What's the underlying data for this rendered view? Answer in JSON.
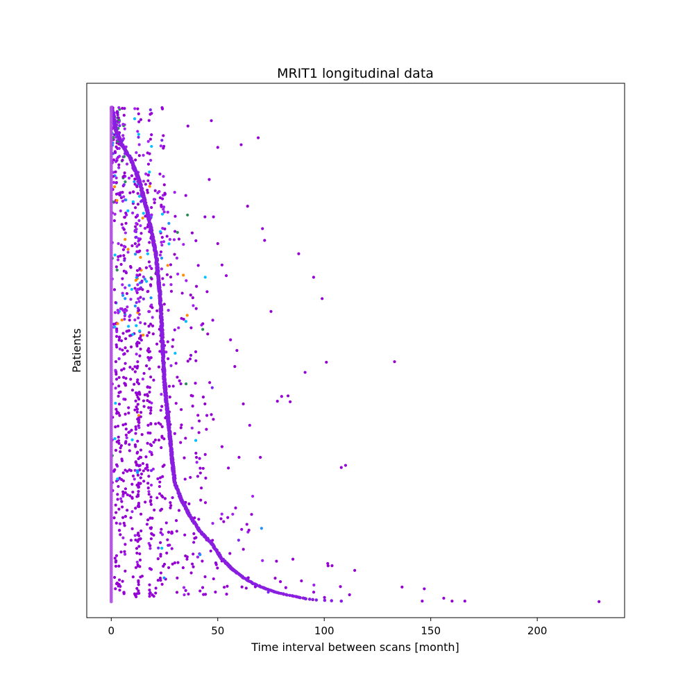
{
  "chart_data": {
    "type": "scatter",
    "title": "MRIT1 longitudinal data",
    "xlabel": "Time interval between scans [month]",
    "ylabel": "Patients",
    "xlim": [
      -11.5,
      241
    ],
    "ylim": [
      0,
      1
    ],
    "xticks": [
      0,
      50,
      100,
      150,
      200
    ],
    "yticks": [],
    "grid": false,
    "legend": false,
    "colors": {
      "baseline": "#b050e0",
      "curve": "#8a1ee0",
      "points": [
        "#9400d3",
        "#7a28f0",
        "#a020f0",
        "#1e90ff",
        "#00bfff",
        "#2e8b57",
        "#ff8c00"
      ]
    },
    "series": [
      {
        "role": "baseline",
        "x": [
          0
        ],
        "y_range": [
          0.03,
          0.955
        ]
      },
      {
        "role": "curve",
        "x": [
          0,
          1,
          2,
          3,
          5,
          7,
          9,
          11,
          13,
          15,
          17,
          19,
          21,
          22,
          23,
          23.5,
          24,
          24.5,
          25,
          26,
          27,
          28,
          29,
          30,
          33,
          37,
          42,
          47,
          52,
          57,
          62,
          67,
          72,
          77,
          82,
          87,
          92,
          97,
          102,
          108,
          114,
          122
        ],
        "y": [
          0.955,
          0.94,
          0.915,
          0.905,
          0.885,
          0.872,
          0.86,
          0.84,
          0.82,
          0.79,
          0.76,
          0.72,
          0.68,
          0.64,
          0.6,
          0.56,
          0.52,
          0.48,
          0.44,
          0.4,
          0.36,
          0.32,
          0.28,
          0.25,
          0.22,
          0.19,
          0.16,
          0.14,
          0.11,
          0.09,
          0.075,
          0.063,
          0.055,
          0.048,
          0.043,
          0.039,
          0.035,
          0.033,
          0.032,
          0.031,
          0.031,
          0.031
        ]
      },
      {
        "role": "outliers",
        "points": [
          [
            229,
            0.03
          ],
          [
            166,
            0.031
          ],
          [
            160,
            0.031
          ],
          [
            146,
            0.031
          ],
          [
            133,
            0.479
          ],
          [
            110,
            0.285
          ],
          [
            108,
            0.281
          ],
          [
            101,
            0.478
          ],
          [
            99,
            0.597
          ],
          [
            95,
            0.637
          ],
          [
            91,
            0.459
          ],
          [
            88,
            0.681
          ],
          [
            84,
            0.404
          ],
          [
            83,
            0.415
          ],
          [
            80,
            0.414
          ],
          [
            78,
            0.405
          ],
          [
            75,
            0.573
          ],
          [
            72,
            0.706
          ],
          [
            71,
            0.728
          ],
          [
            69,
            0.898
          ],
          [
            64,
            0.77
          ],
          [
            62,
            0.4
          ],
          [
            61,
            0.885
          ],
          [
            59,
            0.5
          ],
          [
            58,
            0.47
          ],
          [
            56,
            0.52
          ],
          [
            54,
            0.64
          ],
          [
            52,
            0.66
          ],
          [
            50,
            0.7
          ],
          [
            48,
            0.75
          ],
          [
            47,
            0.93
          ],
          [
            45,
            0.61
          ],
          [
            43,
            0.55
          ],
          [
            40,
            0.62
          ],
          [
            38,
            0.72
          ],
          [
            36,
            0.92
          ],
          [
            35,
            0.79
          ],
          [
            33,
            0.56
          ],
          [
            31,
            0.45
          ],
          [
            29,
            0.52
          ],
          [
            27,
            0.16
          ],
          [
            25,
            0.1
          ],
          [
            22,
            0.07
          ],
          [
            20,
            0.04
          ],
          [
            18,
            0.04
          ],
          [
            6,
            0.045
          ],
          [
            44,
            0.75
          ],
          [
            46,
            0.82
          ],
          [
            50,
            0.88
          ],
          [
            36,
            0.48
          ],
          [
            47,
            0.38
          ],
          [
            52,
            0.32
          ],
          [
            55,
            0.28
          ],
          [
            60,
            0.3
          ],
          [
            65,
            0.36
          ],
          [
            70,
            0.3
          ],
          [
            44,
            0.4
          ],
          [
            40,
            0.3
          ],
          [
            42,
            0.22
          ],
          [
            28,
            0.21
          ]
        ]
      }
    ]
  }
}
